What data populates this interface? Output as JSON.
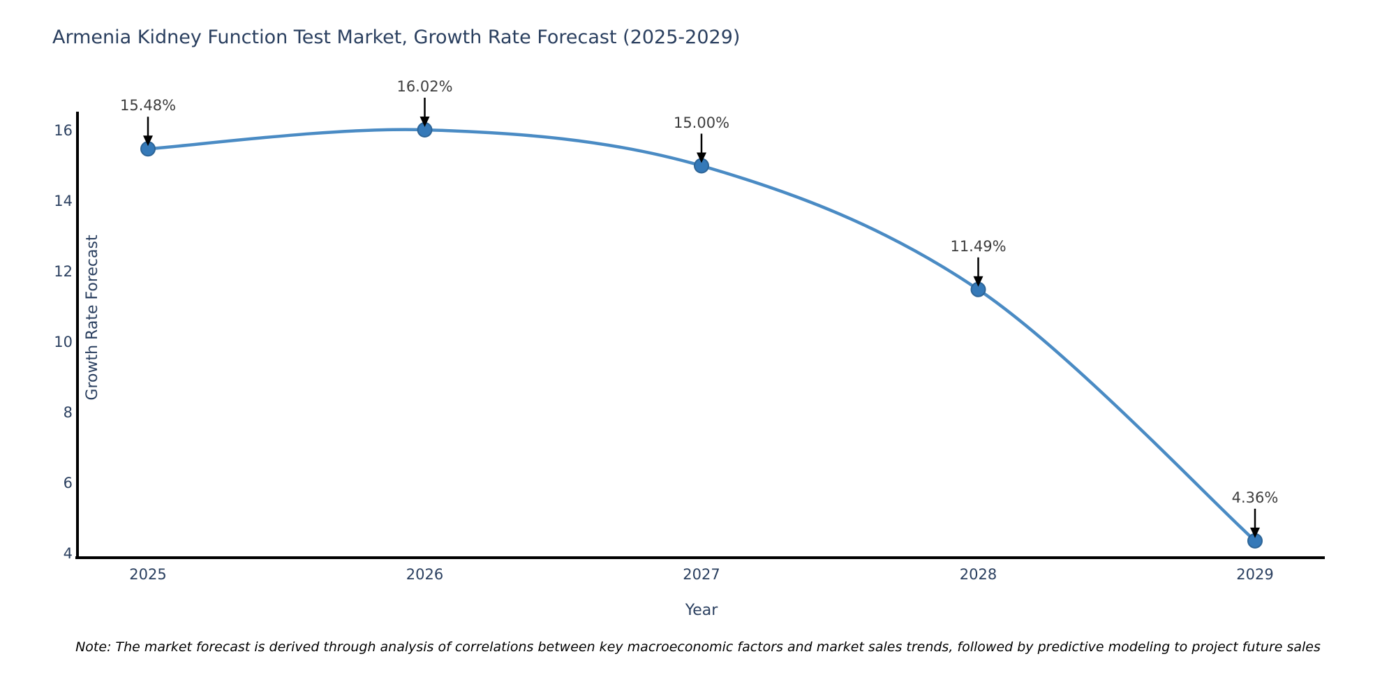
{
  "title": "Armenia Kidney Function Test Market, Growth Rate Forecast (2025-2029)",
  "note": "Note: The market forecast is derived through analysis of correlations between key macroeconomic factors and market sales trends, followed by predictive modeling to project future sales",
  "chart_data": {
    "type": "line",
    "title": "Armenia Kidney Function Test Market, Growth Rate Forecast (2025-2029)",
    "xlabel": "Year",
    "ylabel": "Growth Rate Forecast",
    "categories": [
      "2025",
      "2026",
      "2027",
      "2028",
      "2029"
    ],
    "x": [
      2025,
      2026,
      2027,
      2028,
      2029
    ],
    "series": [
      {
        "name": "Growth Rate Forecast",
        "values": [
          15.48,
          16.02,
          15.0,
          11.49,
          4.36
        ]
      }
    ],
    "point_labels": [
      "15.48%",
      "16.02%",
      "15.00%",
      "11.49%",
      "4.36%"
    ],
    "ylim": [
      3.8,
      16.5
    ],
    "yticks": [
      4,
      6,
      8,
      10,
      12,
      14,
      16
    ],
    "grid": false,
    "legend_position": "none",
    "line_shape": "spline",
    "marker_style": "circle",
    "annotation_style": "value-above-with-down-arrow",
    "colors": {
      "line": "#4a8bc4",
      "marker_fill": "#3579b8",
      "marker_edge": "#2d6496",
      "axis": "#000000",
      "arrow": "#000000",
      "title_text": "#2a3f5f",
      "tick_text": "#2a3f5f",
      "annotation_text": "#3d3d3d",
      "background": "#ffffff"
    }
  }
}
